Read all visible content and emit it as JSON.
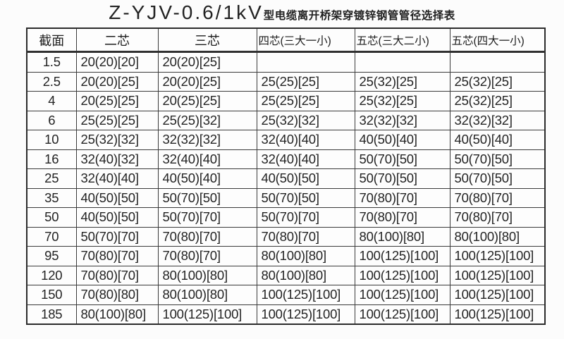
{
  "title": {
    "model": "Z-YJV-0.6/1kV",
    "suffix": "型电缆离开桥架穿镀锌钢管管径选择表"
  },
  "chart_data": {
    "type": "table",
    "title": "Z-YJV-0.6/1kV型电缆离开桥架穿镀锌钢管管径选择表",
    "columns": [
      "截面",
      "二芯",
      "三芯",
      "四芯(三大一小)",
      "五芯(三大二小)",
      "五芯(四大一小)"
    ],
    "rows": [
      [
        "1.5",
        "20(20)[20]",
        "20(20)[25]",
        "",
        "",
        ""
      ],
      [
        "2.5",
        "20(20)[25]",
        "20(20)[25]",
        "25(25)[25]",
        "25(32)[25]",
        "25(32)[25]"
      ],
      [
        "4",
        "20(25)[25]",
        "20(25)[25]",
        "25(25)[25]",
        "25(32)[25]",
        "25(32)[25]"
      ],
      [
        "6",
        "25(25)[25]",
        "25(25)[32]",
        "25(32)[32]",
        "32(32)[32]",
        "32(32)[32]"
      ],
      [
        "10",
        "25(32)[32]",
        "32(32)[32]",
        "32(40)[40]",
        "40(50)[40]",
        "40(50)[40]"
      ],
      [
        "16",
        "32(40)[32]",
        "32(40)[40]",
        "32(40)[40]",
        "50(70)[50]",
        "50(70)[50]"
      ],
      [
        "25",
        "32(40)[40]",
        "40(50)[40]",
        "40(50)[50]",
        "50(70)[50]",
        "50(70)[50]"
      ],
      [
        "35",
        "40(50)[50]",
        "50(70)[50]",
        "50(70)[50]",
        "70(80)[70]",
        "70(80)[70]"
      ],
      [
        "50",
        "40(50)[50]",
        "50(70)[70]",
        "50(70)[70]",
        "70(80)[70]",
        "70(80)[70]"
      ],
      [
        "70",
        "50(70)[70]",
        "70(80)[70]",
        "70(80)[70]",
        "80(100)[80]",
        "80(100)[80]"
      ],
      [
        "95",
        "70(80)[70]",
        "70(80)[70]",
        "80(100)[80]",
        "100(125)[100]",
        "100(125)[100]"
      ],
      [
        "120",
        "70(80)[70]",
        "80(100)[80]",
        "80(100)[80]",
        "100(125)[100]",
        "100(125)[100]"
      ],
      [
        "150",
        "70(80)[80]",
        "80(100)[80]",
        "100(125)[100]",
        "100(125)[100]",
        "100(125)[100]"
      ],
      [
        "185",
        "80(100)[80]",
        "100(125)[100]",
        "100(125)[100]",
        "100(125)[100]",
        "100(125)[100]"
      ]
    ],
    "layout": {
      "grid": true,
      "header_separator": "thick",
      "colors": {
        "line": "#3a3a3a",
        "text": "#242424",
        "background": "#fcfcfc"
      }
    }
  }
}
